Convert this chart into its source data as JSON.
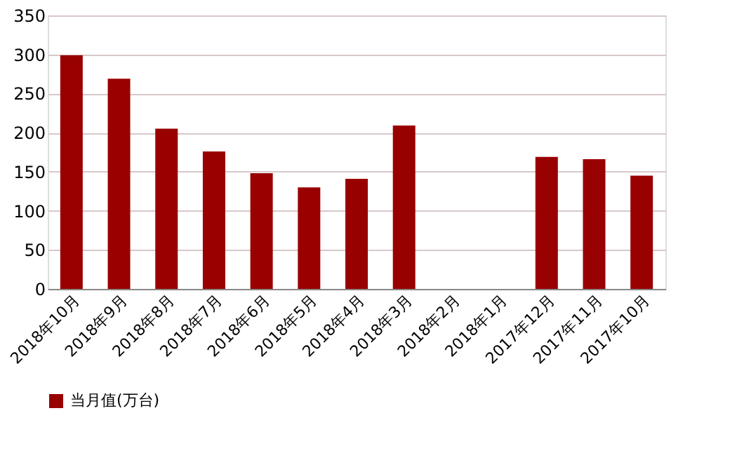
{
  "chart_data": {
    "type": "bar",
    "categories": [
      "2018年10月",
      "2018年9月",
      "2018年8月",
      "2018年7月",
      "2018年6月",
      "2018年5月",
      "2018年4月",
      "2018年3月",
      "2018年2月",
      "2018年1月",
      "2017年12月",
      "2017年11月",
      "2017年10月"
    ],
    "series": [
      {
        "name": "当月值(万台)",
        "color": "#990000",
        "values": [
          299,
          269,
          205,
          176,
          148,
          130,
          141,
          209,
          null,
          null,
          169,
          166,
          145
        ]
      }
    ],
    "ylim": [
      0,
      350
    ],
    "yticks": [
      0,
      50,
      100,
      150,
      200,
      250,
      300,
      350
    ],
    "grid": "y",
    "legend": "bottom"
  }
}
